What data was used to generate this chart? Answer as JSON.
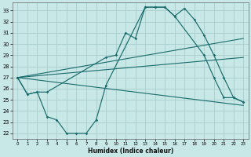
{
  "bg_color": "#c8e8e8",
  "grid_color": "#a8cccc",
  "line_color": "#1a6b6b",
  "xlabel": "Humidex (Indice chaleur)",
  "xlim": [
    -0.5,
    23.5
  ],
  "ylim": [
    21.5,
    33.7
  ],
  "xticks": [
    0,
    1,
    2,
    3,
    4,
    5,
    6,
    7,
    8,
    9,
    10,
    11,
    12,
    13,
    14,
    15,
    16,
    17,
    18,
    19,
    20,
    21,
    22,
    23
  ],
  "yticks": [
    22,
    23,
    24,
    25,
    26,
    27,
    28,
    29,
    30,
    31,
    32,
    33
  ],
  "curve_top_x": [
    0,
    1,
    2,
    3,
    9,
    10,
    11,
    12,
    13,
    14,
    15,
    16,
    17,
    18,
    19,
    20,
    21,
    22,
    23
  ],
  "curve_top_y": [
    27.0,
    25.5,
    25.7,
    25.7,
    28.8,
    29.0,
    31.0,
    30.5,
    33.3,
    33.3,
    33.3,
    32.5,
    33.2,
    32.2,
    30.8,
    29.0,
    27.0,
    25.2,
    24.8
  ],
  "curve_bot_x": [
    0,
    1,
    2,
    3,
    4,
    5,
    6,
    7,
    8,
    9,
    13,
    14,
    15,
    16,
    19,
    20,
    21,
    22,
    23
  ],
  "curve_bot_y": [
    27.0,
    25.5,
    25.7,
    23.5,
    23.2,
    22.0,
    22.0,
    22.0,
    23.2,
    26.3,
    33.3,
    33.3,
    33.3,
    32.5,
    29.0,
    27.0,
    25.2,
    25.2,
    24.8
  ],
  "trend1_x": [
    0,
    23
  ],
  "trend1_y": [
    27.0,
    30.5
  ],
  "trend2_x": [
    0,
    23
  ],
  "trend2_y": [
    27.0,
    28.8
  ],
  "trend3_x": [
    0,
    23
  ],
  "trend3_y": [
    27.0,
    24.5
  ]
}
